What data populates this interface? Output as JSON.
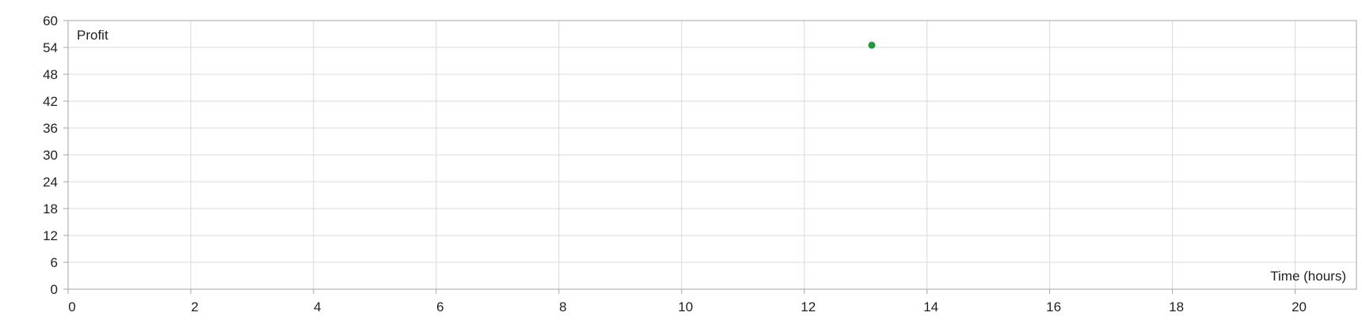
{
  "chart_data": {
    "type": "scatter",
    "title": "",
    "xlabel": "Time (hours)",
    "ylabel": "Profit",
    "xlim": [
      0,
      21
    ],
    "ylim": [
      0,
      60
    ],
    "x_ticks": [
      0,
      2,
      4,
      6,
      8,
      10,
      12,
      14,
      16,
      18,
      20
    ],
    "y_ticks": [
      0,
      6,
      12,
      18,
      24,
      30,
      36,
      42,
      48,
      54,
      60
    ],
    "grid": true,
    "series": [
      {
        "color": "#1e9a3c",
        "points": [
          {
            "x": 13.1,
            "y": 54.5
          }
        ]
      }
    ],
    "colors": {
      "grid": "#d9d9d9",
      "axis": "#a6a6a6",
      "text": "#222222"
    }
  }
}
